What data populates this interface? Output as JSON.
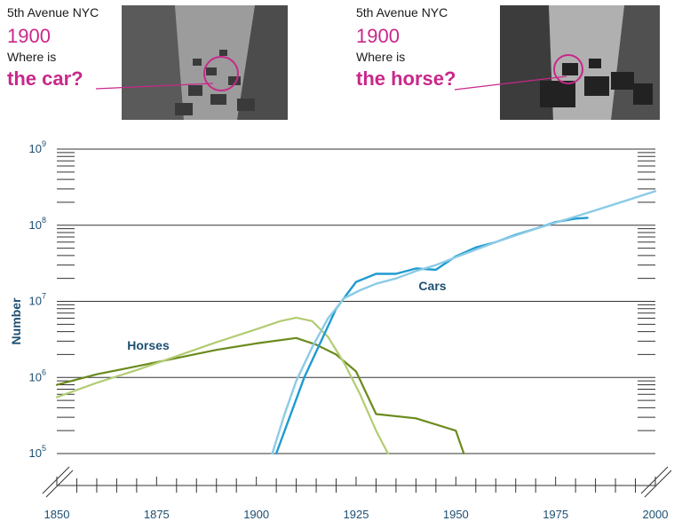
{
  "panels": [
    {
      "location": "5th Avenue NYC",
      "year": "1900",
      "question_prefix": "Where is",
      "question": "the car?"
    },
    {
      "location": "5th Avenue NYC",
      "year": "1900",
      "question_prefix": "Where is",
      "question": "the horse?"
    }
  ],
  "colors": {
    "accent": "#c8288a",
    "horses_dark": "#6b8a1d",
    "horses_light": "#b2cc72",
    "cars_dark": "#1f9bd0",
    "cars_light": "#8ccbe6",
    "axis_text": "#1d4f72"
  },
  "chart_data": {
    "type": "line",
    "title": "",
    "ylabel": "Number",
    "xlabel": "",
    "ylog": true,
    "ylim": [
      100000,
      1000000000
    ],
    "xlim": [
      1850,
      2000
    ],
    "grid": true,
    "x_ticks": [
      "1850",
      "1875",
      "1900",
      "1925",
      "1950",
      "1975",
      "2000"
    ],
    "y_ticks": [
      {
        "base": "10",
        "exp": "5"
      },
      {
        "base": "10",
        "exp": "6"
      },
      {
        "base": "10",
        "exp": "7"
      },
      {
        "base": "10",
        "exp": "8"
      },
      {
        "base": "10",
        "exp": "9"
      }
    ],
    "labels": {
      "horses": "Horses",
      "cars": "Cars"
    },
    "series": [
      {
        "key": "horses_dark",
        "x": [
          1850,
          1860,
          1870,
          1880,
          1890,
          1900,
          1910,
          1915,
          1920,
          1925,
          1930,
          1940,
          1950,
          1952
        ],
        "y": [
          800000,
          1100000,
          1400000,
          1800000,
          2300000,
          2800000,
          3300000,
          2700000,
          2000000,
          1200000,
          330000,
          290000,
          200000,
          100000
        ]
      },
      {
        "key": "horses_light",
        "x": [
          1850,
          1860,
          1870,
          1880,
          1890,
          1900,
          1906,
          1910,
          1914,
          1918,
          1922,
          1926,
          1930,
          1933
        ],
        "y": [
          550000,
          850000,
          1250000,
          1900000,
          2900000,
          4300000,
          5500000,
          6100000,
          5500000,
          3400000,
          1550000,
          600000,
          200000,
          100000
        ]
      },
      {
        "key": "cars_dark",
        "x": [
          1905,
          1912,
          1920,
          1925,
          1930,
          1935,
          1940,
          1945,
          1950,
          1955,
          1960,
          1965,
          1970,
          1975,
          1980,
          1983
        ],
        "y": [
          100000,
          1000000,
          8000000,
          18000000,
          23000000,
          23000000,
          27000000,
          26000000,
          39000000,
          51000000,
          60000000,
          75000000,
          90000000,
          110000000,
          122000000,
          125000000
        ]
      },
      {
        "key": "cars_light",
        "x": [
          1904,
          1907,
          1910,
          1914,
          1918,
          1922,
          1926,
          1930,
          1935,
          1940,
          1945,
          1950,
          1960,
          1970,
          1980,
          1990,
          2000
        ],
        "y": [
          100000,
          320000,
          900000,
          2500000,
          6000000,
          11000000,
          14000000,
          17000000,
          20000000,
          25000000,
          30000000,
          38000000,
          60000000,
          90000000,
          130000000,
          190000000,
          280000000
        ]
      }
    ]
  }
}
